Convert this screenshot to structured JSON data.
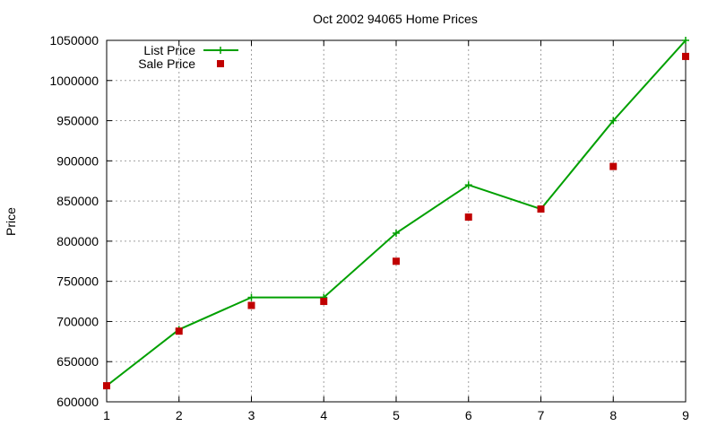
{
  "chart_data": {
    "type": "line",
    "title": "Oct 2002 94065 Home Prices",
    "xlabel": "",
    "ylabel": "Price",
    "x": [
      1,
      2,
      3,
      4,
      5,
      6,
      7,
      8,
      9
    ],
    "xlim": [
      1,
      9
    ],
    "ylim": [
      600000,
      1050000
    ],
    "yticks": [
      600000,
      650000,
      700000,
      750000,
      800000,
      850000,
      900000,
      950000,
      1000000,
      1050000
    ],
    "grid": true,
    "legend_position": "top-left",
    "series": [
      {
        "name": "List Price",
        "style": "line-points",
        "marker": "plus",
        "color": "#00a000",
        "values": [
          620000,
          690000,
          730000,
          730000,
          810000,
          870000,
          840000,
          950000,
          1050000
        ]
      },
      {
        "name": "Sale Price",
        "style": "points",
        "marker": "square",
        "color": "#c00000",
        "values": [
          620000,
          688000,
          720000,
          725000,
          775000,
          830000,
          840000,
          893000,
          1030000
        ]
      }
    ]
  }
}
